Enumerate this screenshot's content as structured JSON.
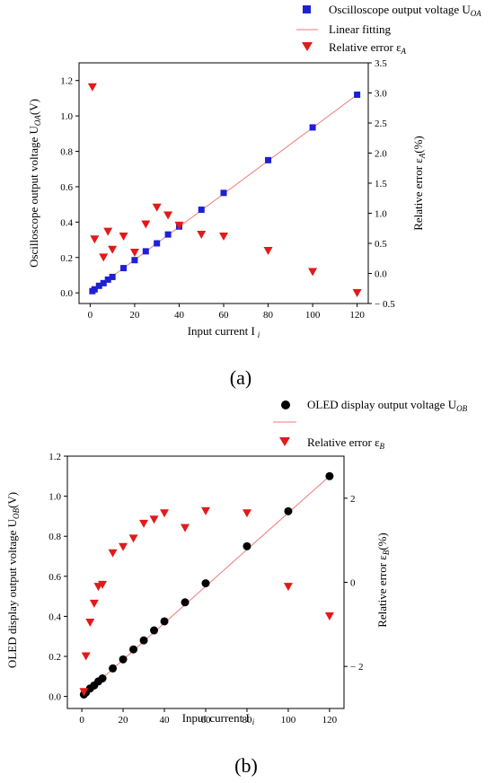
{
  "panel_labels": [
    "(a)",
    "(b)"
  ],
  "colors": {
    "squares": "#1f1fd6",
    "triangles": "#e21a1a",
    "fit_line": "#f07a7a",
    "dots": "#000000"
  },
  "chart_data": [
    {
      "type": "scatter",
      "panel": "a",
      "xlabel": "Input current I",
      "xlabel_sub": "i",
      "ylabel": "Oscilloscope output voltage U",
      "ylabel_sub": "OA",
      "ylabel_unit": "(V)",
      "y2label": "Relative error ε",
      "y2label_sub": "A",
      "y2label_unit": "(%)",
      "xlim": [
        -5,
        125
      ],
      "ylim": [
        -0.06,
        1.3
      ],
      "y2lim": [
        -0.5,
        3.5
      ],
      "xticks": [
        "0",
        "20",
        "40",
        "60",
        "80",
        "100",
        "120"
      ],
      "yticks": [
        "0.0",
        "0.2",
        "0.4",
        "0.6",
        "0.8",
        "1.0",
        "1.2"
      ],
      "y2ticks": [
        "3.5",
        "3.0",
        "2.5",
        "2.0",
        "1.5",
        "1.0",
        "0.5",
        "0.0",
        "-0.5"
      ],
      "legend_placement": "top-right",
      "legend": [
        {
          "label": "Oscilloscope output voltage U",
          "sub": "OA",
          "marker": "square"
        },
        {
          "label": "Linear fitting",
          "sub": "",
          "marker": "line"
        },
        {
          "label": "Relative error ε",
          "sub": "A",
          "marker": "triangle"
        }
      ],
      "series": [
        {
          "name": "Oscilloscope output voltage U_OA",
          "axis": "left",
          "x": [
            1,
            2,
            4,
            6,
            8,
            10,
            15,
            20,
            25,
            30,
            35,
            40,
            50,
            60,
            80,
            100,
            120
          ],
          "y": [
            0.01,
            0.02,
            0.04,
            0.055,
            0.075,
            0.09,
            0.14,
            0.185,
            0.235,
            0.28,
            0.33,
            0.375,
            0.47,
            0.565,
            0.75,
            0.935,
            1.12
          ]
        },
        {
          "name": "Linear fitting",
          "axis": "left",
          "x": [
            0,
            120
          ],
          "y": [
            0.0,
            1.12
          ]
        },
        {
          "name": "Relative error ε_A",
          "axis": "right",
          "x": [
            1,
            2,
            6,
            8,
            10,
            15,
            20,
            25,
            30,
            35,
            40,
            50,
            60,
            80,
            100,
            120
          ],
          "y": [
            3.1,
            0.57,
            0.27,
            0.7,
            0.4,
            0.62,
            0.35,
            0.82,
            1.1,
            0.97,
            0.8,
            0.65,
            0.62,
            0.38,
            0.03,
            -0.32
          ]
        }
      ]
    },
    {
      "type": "scatter",
      "panel": "b",
      "xlabel": "Input current I",
      "xlabel_sub": "i",
      "ylabel": "OLED display output voltage U",
      "ylabel_sub": "OB",
      "ylabel_unit": "(V)",
      "y2label": "Relative error ε",
      "y2label_sub": "B",
      "y2label_unit": "(%)",
      "xlim": [
        -7,
        127
      ],
      "ylim": [
        -0.06,
        1.2
      ],
      "y2lim": [
        -3.0,
        3.0
      ],
      "xticks": [
        "0",
        "20",
        "40",
        "60",
        "80",
        "100",
        "120"
      ],
      "yticks": [
        "0.0",
        "0.2",
        "0.4",
        "0.6",
        "0.8",
        "1.0",
        "1.2"
      ],
      "y2ticks": [
        "2",
        "0",
        "-2"
      ],
      "legend_placement": "top-right",
      "legend": [
        {
          "label": "OLED display output voltage U",
          "sub": "OB",
          "marker": "circle"
        },
        {
          "label": "",
          "sub": "",
          "marker": "line"
        },
        {
          "label": "Relative error ε",
          "sub": "B",
          "marker": "triangle"
        }
      ],
      "series": [
        {
          "name": "OLED display output voltage U_OB",
          "axis": "left",
          "x": [
            1,
            2,
            4,
            6,
            8,
            10,
            15,
            20,
            25,
            30,
            35,
            40,
            50,
            60,
            80,
            100,
            120
          ],
          "y": [
            0.01,
            0.02,
            0.04,
            0.055,
            0.075,
            0.09,
            0.14,
            0.185,
            0.235,
            0.28,
            0.33,
            0.375,
            0.47,
            0.565,
            0.75,
            0.925,
            1.1
          ]
        },
        {
          "name": "Linear fitting",
          "axis": "left",
          "x": [
            0,
            120
          ],
          "y": [
            0.0,
            1.1
          ]
        },
        {
          "name": "Relative error ε_B",
          "axis": "right",
          "x": [
            1,
            2,
            4,
            6,
            8,
            10,
            15,
            20,
            25,
            30,
            35,
            40,
            50,
            60,
            80,
            100,
            120
          ],
          "y": [
            -2.6,
            -1.75,
            -0.95,
            -0.5,
            -0.1,
            -0.05,
            0.7,
            0.85,
            1.05,
            1.4,
            1.5,
            1.65,
            1.3,
            1.7,
            1.65,
            -0.1,
            -0.8
          ]
        }
      ]
    }
  ]
}
